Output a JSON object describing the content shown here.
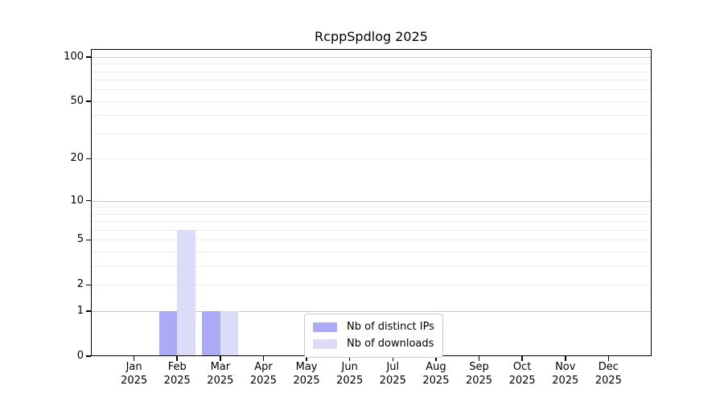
{
  "title": "RcppSpdlog 2025",
  "chart_data": {
    "type": "bar",
    "title": "RcppSpdlog 2025",
    "categories": [
      "Jan",
      "Feb",
      "Mar",
      "Apr",
      "May",
      "Jun",
      "Jul",
      "Aug",
      "Sep",
      "Oct",
      "Nov",
      "Dec"
    ],
    "category_year": "2025",
    "series": [
      {
        "name": "Nb of distinct IPs",
        "color": "#aaaaf5",
        "values": [
          0,
          1,
          1,
          0,
          0,
          0,
          0,
          0,
          0,
          0,
          0,
          0
        ]
      },
      {
        "name": "Nb of downloads",
        "color": "#dcdcf8",
        "values": [
          0,
          6,
          1,
          0,
          0,
          0,
          0,
          0,
          0,
          0,
          0,
          0
        ]
      }
    ],
    "xlabel": "",
    "ylabel": "",
    "y_axis": {
      "scale": "log1p",
      "tick_values": [
        0,
        1,
        2,
        5,
        10,
        20,
        50,
        100
      ],
      "max": 113,
      "major_gridlines": [
        1,
        10,
        100
      ],
      "minor_gridlines": [
        2,
        3,
        4,
        5,
        6,
        7,
        8,
        9,
        20,
        30,
        40,
        50,
        60,
        70,
        80,
        90
      ]
    },
    "legend": {
      "position": "inside-bottom-center"
    },
    "grid": true
  },
  "colors": {
    "major_grid": "#c8c8c8",
    "minor_grid": "#ececec",
    "axis": "#000000",
    "text": "#000000",
    "legend_border": "#cbcbcb"
  }
}
